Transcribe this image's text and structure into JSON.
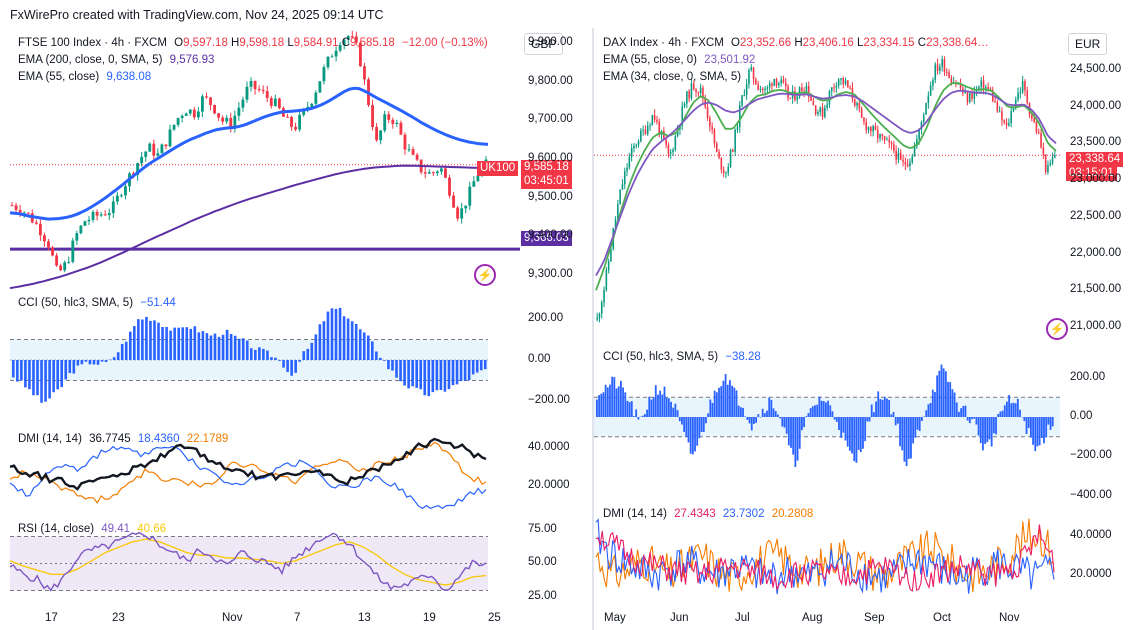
{
  "header_line": "FxWirePro created with TradingView.com, Nov 24, 2025 09:14 UTC",
  "left": {
    "title": "FTSE 100 Index · 4h · FXCM",
    "ohlc": [
      {
        "k": "O",
        "v": "9,597.18",
        "color": "#f23645"
      },
      {
        "k": "H",
        "v": "9,598.18",
        "color": "#f23645"
      },
      {
        "k": "L",
        "v": "9,584.91",
        "color": "#f23645"
      },
      {
        "k": "C",
        "v": "9,585.18",
        "color": "#f23645"
      },
      {
        "k": "",
        "v": "−12.00 (−0.13%)",
        "color": "#f23645"
      }
    ],
    "ema1_label": "EMA (200, close, 0, SMA, 5)",
    "ema1_value": "9,576.93",
    "ema1_color": "#5b2fa3",
    "ema2_label": "EMA (55, close)",
    "ema2_value": "9,638.08",
    "ema2_color": "#2962ff",
    "currency": "GBP",
    "price_ticks": [
      "9,900.00",
      "9,800.00",
      "9,700.00",
      "9,600.00",
      "9,500.00",
      "9,400.00",
      "9,300.00"
    ],
    "symbol_tag": "UK100",
    "last_price": "9,585.18",
    "countdown": "03:45:01",
    "hline_price": "9,366.03",
    "cci_label": "CCI (50, hlc3, SMA, 5)",
    "cci_value": "−51.44",
    "cci_ticks": [
      "200.00",
      "0.00",
      "−200.00"
    ],
    "dmi_label": "DMI (14, 14)",
    "dmi_values": [
      "36.7745",
      "18.4360",
      "22.1789"
    ],
    "dmi_colors": [
      "#131722",
      "#2962ff",
      "#f57c00"
    ],
    "dmi_ticks": [
      "40.0000",
      "20.0000"
    ],
    "rsi_label": "RSI (14, close)",
    "rsi_values": [
      "49.41",
      "40.66"
    ],
    "rsi_colors": [
      "#7e57c2",
      "#f9c80e"
    ],
    "rsi_ticks": [
      "75.00",
      "50.00",
      "25.00"
    ],
    "x_ticks": [
      "17",
      "23",
      "Nov",
      "7",
      "13",
      "19",
      "25"
    ]
  },
  "right": {
    "title": "DAX Index · 4h · FXCM",
    "ohlc": [
      {
        "k": "O",
        "v": "23,352.66",
        "color": "#f23645"
      },
      {
        "k": "H",
        "v": "23,406.16",
        "color": "#f23645"
      },
      {
        "k": "L",
        "v": "23,334.15",
        "color": "#f23645"
      },
      {
        "k": "C",
        "v": "23,338.64…",
        "color": "#f23645"
      }
    ],
    "ema1_label": "EMA (55, close, 0)",
    "ema1_value": "23,501.92",
    "ema1_color": "#7e57c2",
    "ema2_label": "EMA (34, close, 0, SMA, 5)",
    "ema2_value": "",
    "ema2_color": "#4caf50",
    "currency": "EUR",
    "price_ticks": [
      "24,500.00",
      "24,000.00",
      "23,500.00",
      "23,000.00",
      "22,500.00",
      "22,000.00",
      "21,500.00",
      "21,000.00"
    ],
    "last_price": "23,338.64",
    "countdown": "03:15:01",
    "cci_label": "CCI (50, hlc3, SMA, 5)",
    "cci_value": "−38.28",
    "cci_ticks": [
      "200.00",
      "0.00",
      "−200.00",
      "−400.00"
    ],
    "dmi_label": "DMI (14, 14)",
    "dmi_values": [
      "27.4343",
      "23.7302",
      "20.2808"
    ],
    "dmi_colors": [
      "#e91e63",
      "#2962ff",
      "#f57c00"
    ],
    "dmi_ticks": [
      "40.0000",
      "20.0000"
    ],
    "x_ticks": [
      "May",
      "Jun",
      "Jul",
      "Aug",
      "Sep",
      "Oct",
      "Nov"
    ]
  },
  "chart_data": [
    {
      "type": "candlestick",
      "title": "FTSE 100 Index · 4h · FXCM",
      "ylim": [
        9260,
        9940
      ],
      "x_ticks": [
        "17",
        "23",
        "Nov",
        "7",
        "13",
        "19",
        "25"
      ],
      "close_path": [
        9480,
        9470,
        9450,
        9420,
        9380,
        9300,
        9330,
        9400,
        9440,
        9450,
        9460,
        9470,
        9520,
        9560,
        9600,
        9630,
        9610,
        9650,
        9700,
        9730,
        9720,
        9760,
        9740,
        9700,
        9690,
        9740,
        9790,
        9780,
        9760,
        9740,
        9700,
        9680,
        9720,
        9760,
        9820,
        9870,
        9910,
        9920,
        9880,
        9760,
        9640,
        9710,
        9700,
        9640,
        9600,
        9570,
        9560,
        9580,
        9520,
        9450,
        9500,
        9560,
        9585
      ],
      "ema55_path": [
        9460,
        9458,
        9452,
        9448,
        9444,
        9445,
        9448,
        9455,
        9466,
        9480,
        9496,
        9514,
        9533,
        9553,
        9572,
        9590,
        9605,
        9620,
        9635,
        9648,
        9658,
        9668,
        9676,
        9680,
        9682,
        9688,
        9698,
        9708,
        9716,
        9722,
        9724,
        9726,
        9730,
        9738,
        9750,
        9765,
        9780,
        9785,
        9775,
        9760,
        9748,
        9735,
        9722,
        9708,
        9693,
        9680,
        9668,
        9658,
        9650,
        9644,
        9640,
        9638
      ],
      "ema200_path": [
        9265,
        9270,
        9276,
        9283,
        9291,
        9300,
        9310,
        9320,
        9332,
        9345,
        9358,
        9372,
        9386,
        9400,
        9413,
        9426,
        9440,
        9452,
        9464,
        9475,
        9486,
        9496,
        9505,
        9514,
        9523,
        9532,
        9540,
        9548,
        9556,
        9563,
        9569,
        9574,
        9578,
        9580,
        9582,
        9583,
        9582,
        9581,
        9580,
        9579,
        9578,
        9577,
        9577
      ],
      "horizontal_line": 9366.03,
      "last": 9585.18
    },
    {
      "type": "candlestick",
      "title": "DAX Index · 4h · FXCM",
      "ylim": [
        20850,
        24800
      ],
      "x_ticks": [
        "May",
        "Jun",
        "Jul",
        "Aug",
        "Sep",
        "Oct",
        "Nov"
      ],
      "close_path": [
        21100,
        21600,
        22300,
        22900,
        23300,
        23550,
        23700,
        23900,
        23600,
        23300,
        23700,
        24100,
        24300,
        24200,
        23800,
        23300,
        23100,
        23500,
        24100,
        24500,
        24300,
        24200,
        24400,
        24300,
        24100,
        24200,
        24300,
        24000,
        23900,
        24200,
        24400,
        24300,
        24100,
        23800,
        23700,
        23600,
        23500,
        23400,
        23200,
        23300,
        23600,
        24100,
        24500,
        24600,
        24400,
        24300,
        24100,
        24200,
        24300,
        24200,
        23900,
        23700,
        24100,
        24300,
        23900,
        23600,
        23100,
        23350
      ],
      "ema55_path": [
        21700,
        21900,
        22200,
        22500,
        22800,
        23050,
        23250,
        23420,
        23520,
        23600,
        23700,
        23820,
        23940,
        24030,
        24060,
        24020,
        23950,
        23920,
        23960,
        24040,
        24100,
        24130,
        24160,
        24180,
        24170,
        24160,
        24170,
        24140,
        24110,
        24120,
        24150,
        24160,
        24140,
        24080,
        24000,
        23920,
        23840,
        23760,
        23680,
        23640,
        23680,
        23800,
        23960,
        24100,
        24190,
        24220,
        24210,
        24190,
        24190,
        24170,
        24100,
        24030,
        24020,
        24030,
        23960,
        23820,
        23600,
        23502
      ],
      "ema34_path": [
        21500,
        21800,
        22150,
        22550,
        22900,
        23180,
        23400,
        23580,
        23650,
        23600,
        23650,
        23850,
        24050,
        24150,
        24080,
        23900,
        23700,
        23700,
        23850,
        24050,
        24150,
        24170,
        24220,
        24230,
        24190,
        24180,
        24200,
        24140,
        24080,
        24100,
        24170,
        24200,
        24170,
        24050,
        23920,
        23800,
        23690,
        23590,
        23480,
        23430,
        23500,
        23720,
        24000,
        24220,
        24320,
        24320,
        24270,
        24230,
        24240,
        24220,
        24120,
        24000,
        23990,
        24020,
        23920,
        23760,
        23500,
        23400
      ],
      "last": 23338.64
    }
  ]
}
